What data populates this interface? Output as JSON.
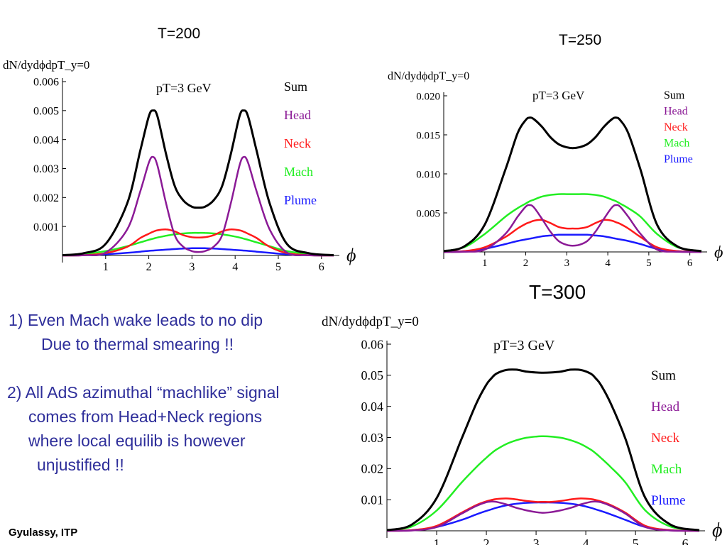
{
  "slide": {
    "temp_labels": [
      "T=200",
      "T=250",
      "T=300"
    ],
    "notes": [
      "1)  Even Mach wake leads to no dip",
      "Due to thermal smearing !!",
      "2) All AdS azimuthal “machlike” signal",
      "comes from Head+Neck  regions",
      "where local equilib is however",
      "unjustified !!"
    ],
    "author": "Gyulassy, ITP"
  },
  "chart_data": [
    {
      "type": "line",
      "ylabel": "dN/dydϕdpT_y=0",
      "xlabel": "ϕ",
      "annotation": "pT=3 GeV",
      "xlim": [
        0,
        6.2832
      ],
      "ylim": [
        0,
        0.006
      ],
      "xticks": [
        1,
        2,
        3,
        4,
        5,
        6
      ],
      "yticks": [
        0.001,
        0.002,
        0.003,
        0.004,
        0.005,
        0.006
      ],
      "yticklabels": [
        "0.001",
        "0.002",
        "0.003",
        "0.004",
        "0.005",
        "0.006"
      ],
      "x": [
        0,
        0.5,
        1.0,
        1.5,
        1.8,
        2.0,
        2.1,
        2.2,
        2.4,
        2.6,
        2.8,
        3.0,
        3.1416,
        3.3,
        3.5,
        3.7,
        3.9,
        4.1,
        4.2,
        4.3,
        4.5,
        4.8,
        5.2,
        5.7,
        6.2832
      ],
      "series": [
        {
          "name": "Sum",
          "color": "#000000",
          "values": [
            1e-05,
            8e-05,
            0.0004,
            0.0018,
            0.0036,
            0.0048,
            0.005,
            0.0048,
            0.0035,
            0.0024,
            0.0019,
            0.00168,
            0.00165,
            0.00168,
            0.0019,
            0.0024,
            0.0035,
            0.0048,
            0.005,
            0.0048,
            0.0036,
            0.0018,
            0.0004,
            8e-05,
            1e-05
          ]
        },
        {
          "name": "Head",
          "color": "#8b1a96",
          "values": [
            0,
            1e-05,
            0.0001,
            0.0009,
            0.0022,
            0.0032,
            0.0034,
            0.0031,
            0.0018,
            0.0007,
            0.0003,
            0.00015,
            0.00012,
            0.00015,
            0.0003,
            0.0007,
            0.0018,
            0.0031,
            0.0034,
            0.0032,
            0.0022,
            0.0009,
            0.0001,
            1e-05,
            0
          ]
        },
        {
          "name": "Neck",
          "color": "#ff1a1a",
          "values": [
            0,
            1e-05,
            8e-05,
            0.0003,
            0.0006,
            0.00075,
            0.00082,
            0.00087,
            0.0009,
            0.00083,
            0.0007,
            0.00063,
            0.00062,
            0.00063,
            0.0007,
            0.00083,
            0.0009,
            0.00087,
            0.00082,
            0.00075,
            0.0006,
            0.0003,
            8e-05,
            1e-05,
            0
          ]
        },
        {
          "name": "Mach",
          "color": "#22ee22",
          "values": [
            1e-05,
            5e-05,
            0.00015,
            0.00032,
            0.00045,
            0.00054,
            0.00058,
            0.00062,
            0.00068,
            0.00073,
            0.00076,
            0.00078,
            0.00078,
            0.00078,
            0.00076,
            0.00073,
            0.00068,
            0.00062,
            0.00058,
            0.00054,
            0.00045,
            0.00032,
            0.00015,
            5e-05,
            1e-05
          ]
        },
        {
          "name": "Plume",
          "color": "#1a1aff",
          "values": [
            0,
            1e-05,
            4e-05,
            9e-05,
            0.00013,
            0.00016,
            0.00017,
            0.00018,
            0.0002,
            0.00022,
            0.00024,
            0.00025,
            0.00025,
            0.00025,
            0.00024,
            0.00022,
            0.0002,
            0.00018,
            0.00017,
            0.00016,
            0.00013,
            9e-05,
            4e-05,
            1e-05,
            0
          ]
        }
      ]
    },
    {
      "type": "line",
      "ylabel": "dN/dydϕdpT_y=0",
      "xlabel": "ϕ",
      "annotation": "pT=3 GeV",
      "xlim": [
        0,
        6.2832
      ],
      "ylim": [
        0,
        0.02
      ],
      "xticks": [
        1,
        2,
        3,
        4,
        5,
        6
      ],
      "yticks": [
        0.005,
        0.01,
        0.015,
        0.02
      ],
      "yticklabels": [
        "0.005",
        "0.010",
        "0.015",
        "0.020"
      ],
      "x": [
        0,
        0.5,
        1.0,
        1.5,
        1.8,
        2.0,
        2.1,
        2.2,
        2.4,
        2.6,
        2.8,
        3.0,
        3.1416,
        3.3,
        3.5,
        3.7,
        3.9,
        4.1,
        4.2,
        4.3,
        4.5,
        4.8,
        5.2,
        5.7,
        6.2832
      ],
      "series": [
        {
          "name": "Sum",
          "color": "#000000",
          "values": [
            0.0001,
            0.0007,
            0.0035,
            0.0105,
            0.0152,
            0.0169,
            0.0172,
            0.017,
            0.016,
            0.0147,
            0.0138,
            0.0134,
            0.0133,
            0.0134,
            0.0138,
            0.0147,
            0.016,
            0.017,
            0.0172,
            0.0169,
            0.0152,
            0.0105,
            0.0035,
            0.0007,
            0.0001
          ]
        },
        {
          "name": "Head",
          "color": "#8b1a96",
          "values": [
            0,
            2e-05,
            0.0003,
            0.0023,
            0.0045,
            0.0058,
            0.006,
            0.0057,
            0.0042,
            0.0026,
            0.0014,
            0.0009,
            0.0008,
            0.0009,
            0.0014,
            0.0026,
            0.0042,
            0.0057,
            0.006,
            0.0058,
            0.0045,
            0.0023,
            0.0003,
            2e-05,
            0
          ]
        },
        {
          "name": "Neck",
          "color": "#ff1a1a",
          "values": [
            0,
            0.0001,
            0.0006,
            0.0019,
            0.003,
            0.0036,
            0.0038,
            0.004,
            0.0041,
            0.0037,
            0.0032,
            0.003,
            0.003,
            0.003,
            0.0032,
            0.0037,
            0.0041,
            0.004,
            0.0038,
            0.0036,
            0.003,
            0.0019,
            0.0006,
            0.0001,
            0
          ]
        },
        {
          "name": "Mach",
          "color": "#22ee22",
          "values": [
            0.0001,
            0.0006,
            0.0023,
            0.0045,
            0.0056,
            0.0062,
            0.0065,
            0.0067,
            0.0071,
            0.0073,
            0.0074,
            0.0074,
            0.0074,
            0.0074,
            0.0074,
            0.0073,
            0.0071,
            0.0067,
            0.0065,
            0.0062,
            0.0056,
            0.0045,
            0.0023,
            0.0006,
            0.0001
          ]
        },
        {
          "name": "Plume",
          "color": "#1a1aff",
          "values": [
            0,
            0.0001,
            0.0004,
            0.001,
            0.0014,
            0.0016,
            0.0017,
            0.0018,
            0.002,
            0.0021,
            0.0022,
            0.0022,
            0.0022,
            0.0022,
            0.0022,
            0.0021,
            0.002,
            0.0018,
            0.0017,
            0.0016,
            0.0014,
            0.001,
            0.0004,
            0.0001,
            0
          ]
        }
      ]
    },
    {
      "type": "line",
      "ylabel": "dN/dydϕdpT_y=0",
      "xlabel": "ϕ",
      "annotation": "pT=3 GeV",
      "xlim": [
        0,
        6.2832
      ],
      "ylim": [
        0,
        0.06
      ],
      "xticks": [
        1,
        2,
        3,
        4,
        5,
        6
      ],
      "yticks": [
        0.01,
        0.02,
        0.03,
        0.04,
        0.05,
        0.06
      ],
      "yticklabels": [
        "0.01",
        "0.02",
        "0.03",
        "0.04",
        "0.05",
        "0.06"
      ],
      "x": [
        0,
        0.5,
        1.0,
        1.5,
        1.8,
        2.0,
        2.1,
        2.2,
        2.4,
        2.6,
        2.8,
        3.0,
        3.1416,
        3.3,
        3.5,
        3.7,
        3.9,
        4.1,
        4.2,
        4.3,
        4.5,
        4.8,
        5.2,
        5.7,
        6.2832
      ],
      "series": [
        {
          "name": "Sum",
          "color": "#000000",
          "values": [
            0.0002,
            0.002,
            0.0105,
            0.0295,
            0.041,
            0.047,
            0.049,
            0.0505,
            0.0517,
            0.0518,
            0.0512,
            0.0509,
            0.0508,
            0.0509,
            0.0512,
            0.0518,
            0.0517,
            0.0505,
            0.049,
            0.047,
            0.041,
            0.0295,
            0.0105,
            0.002,
            0.0002
          ]
        },
        {
          "name": "Head",
          "color": "#8b1a96",
          "values": [
            0,
            0.0001,
            0.0012,
            0.0055,
            0.008,
            0.0092,
            0.0094,
            0.0093,
            0.0085,
            0.0074,
            0.0066,
            0.006,
            0.0058,
            0.006,
            0.0066,
            0.0074,
            0.0085,
            0.0093,
            0.0094,
            0.0092,
            0.008,
            0.0055,
            0.0012,
            0.0001,
            0
          ]
        },
        {
          "name": "Neck",
          "color": "#ff1a1a",
          "values": [
            0,
            0.0002,
            0.0016,
            0.0058,
            0.0083,
            0.0095,
            0.0099,
            0.0102,
            0.0104,
            0.0101,
            0.0096,
            0.0093,
            0.0093,
            0.0093,
            0.0096,
            0.0101,
            0.0104,
            0.0102,
            0.0099,
            0.0095,
            0.0083,
            0.0058,
            0.0016,
            0.0002,
            0
          ]
        },
        {
          "name": "Mach",
          "color": "#22ee22",
          "values": [
            0.0001,
            0.0014,
            0.0065,
            0.0155,
            0.0205,
            0.0235,
            0.0249,
            0.0261,
            0.0279,
            0.0291,
            0.0299,
            0.0303,
            0.0304,
            0.0303,
            0.0299,
            0.0291,
            0.0279,
            0.0261,
            0.0249,
            0.0235,
            0.0205,
            0.0155,
            0.0065,
            0.0014,
            0.0001
          ]
        },
        {
          "name": "Plume",
          "color": "#1a1aff",
          "values": [
            0,
            0.0002,
            0.0012,
            0.0035,
            0.0053,
            0.0064,
            0.0069,
            0.0074,
            0.0082,
            0.0087,
            0.009,
            0.0091,
            0.0091,
            0.0091,
            0.009,
            0.0087,
            0.0082,
            0.0074,
            0.0069,
            0.0064,
            0.0053,
            0.0035,
            0.0012,
            0.0002,
            0
          ]
        }
      ]
    }
  ]
}
